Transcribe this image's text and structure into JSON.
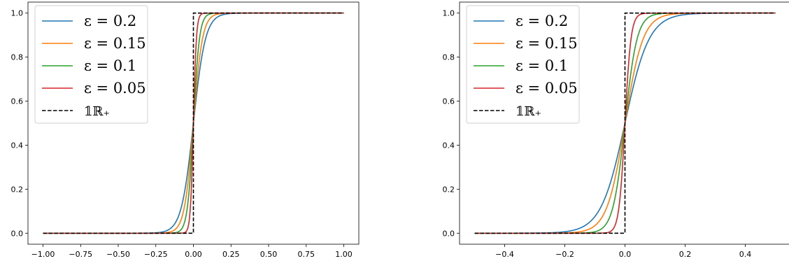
{
  "chart_data": [
    {
      "type": "line",
      "xlim": [
        -1.0,
        1.0
      ],
      "ylim": [
        0.0,
        1.0
      ],
      "x_ticks": [
        "−1.00",
        "−0.75",
        "−0.50",
        "−0.25",
        "0.00",
        "0.25",
        "0.50",
        "0.75",
        "1.00"
      ],
      "y_ticks": [
        "0.0",
        "0.2",
        "0.4",
        "0.6",
        "0.8",
        "1.0"
      ],
      "grid": false,
      "legend_position": "top-left",
      "x_range": [
        -1.0,
        1.0
      ],
      "series": [
        {
          "name": "ε = 0.2",
          "color": "#1f77b4",
          "epsilon": 0.2,
          "curve": "smoothed step 1/(1+exp(-x/(epsilon/5)))"
        },
        {
          "name": "ε = 0.15",
          "color": "#ff7f0e",
          "epsilon": 0.15,
          "curve": "smoothed step"
        },
        {
          "name": "ε = 0.1",
          "color": "#2ca02c",
          "epsilon": 0.1,
          "curve": "smoothed step"
        },
        {
          "name": "ε = 0.05",
          "color": "#d62728",
          "epsilon": 0.05,
          "curve": "smoothed step"
        },
        {
          "name": "𝟙ℝ₊",
          "color": "#000000",
          "dashed": true,
          "curve": "indicator of x >= 0"
        }
      ]
    },
    {
      "type": "line",
      "xlim": [
        -0.5,
        0.5
      ],
      "ylim": [
        0.0,
        1.0
      ],
      "x_ticks": [
        "−0.4",
        "−0.2",
        "0.0",
        "0.2",
        "0.4"
      ],
      "y_ticks": [
        "0.0",
        "0.2",
        "0.4",
        "0.6",
        "0.8",
        "1.0"
      ],
      "grid": false,
      "legend_position": "top-left",
      "x_range": [
        -0.5,
        0.5
      ],
      "series": [
        {
          "name": "ε = 0.2",
          "color": "#1f77b4",
          "epsilon": 0.2
        },
        {
          "name": "ε = 0.15",
          "color": "#ff7f0e",
          "epsilon": 0.15
        },
        {
          "name": "ε = 0.1",
          "color": "#2ca02c",
          "epsilon": 0.1
        },
        {
          "name": "ε = 0.05",
          "color": "#d62728",
          "epsilon": 0.05
        },
        {
          "name": "𝟙ℝ₊",
          "color": "#000000",
          "dashed": true
        }
      ]
    }
  ]
}
